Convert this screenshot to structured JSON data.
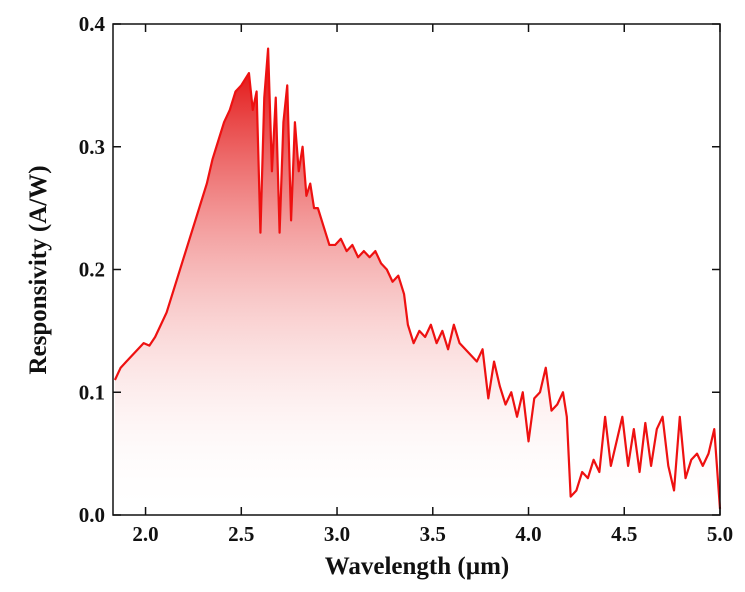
{
  "chart_data": {
    "type": "line",
    "x_label": "Wavelength (µm)",
    "y_label": "Responsivity (A/W)",
    "color": "#ee1111",
    "fill_under": true,
    "xlim": [
      1.83,
      5.0
    ],
    "ylim": [
      0,
      0.4
    ],
    "xticks": [
      {
        "value": 2,
        "label": "2.0"
      },
      2.5,
      {
        "value": 3,
        "label": "3.0"
      },
      3.5,
      {
        "value": 4,
        "label": "4.0"
      },
      4.5,
      {
        "value": 5,
        "label": "5.0"
      }
    ],
    "yticks": [
      {
        "value": 0,
        "label": "0.0"
      },
      0.1,
      0.2,
      0.3,
      0.4
    ],
    "x": [
      1.84,
      1.87,
      1.9,
      1.93,
      1.96,
      1.99,
      2.02,
      2.05,
      2.08,
      2.11,
      2.14,
      2.17,
      2.2,
      2.23,
      2.26,
      2.29,
      2.32,
      2.35,
      2.38,
      2.41,
      2.44,
      2.47,
      2.5,
      2.52,
      2.54,
      2.56,
      2.58,
      2.6,
      2.62,
      2.64,
      2.66,
      2.68,
      2.7,
      2.72,
      2.74,
      2.76,
      2.78,
      2.8,
      2.82,
      2.84,
      2.86,
      2.88,
      2.9,
      2.93,
      2.96,
      2.99,
      3.02,
      3.05,
      3.08,
      3.11,
      3.14,
      3.17,
      3.2,
      3.23,
      3.26,
      3.29,
      3.32,
      3.35,
      3.37,
      3.4,
      3.43,
      3.46,
      3.49,
      3.52,
      3.55,
      3.58,
      3.61,
      3.64,
      3.67,
      3.7,
      3.73,
      3.76,
      3.79,
      3.82,
      3.85,
      3.88,
      3.91,
      3.94,
      3.97,
      4.0,
      4.03,
      4.06,
      4.09,
      4.12,
      4.15,
      4.18,
      4.2,
      4.22,
      4.25,
      4.28,
      4.31,
      4.34,
      4.37,
      4.4,
      4.43,
      4.46,
      4.49,
      4.52,
      4.55,
      4.58,
      4.61,
      4.64,
      4.67,
      4.7,
      4.73,
      4.76,
      4.79,
      4.82,
      4.85,
      4.88,
      4.91,
      4.94,
      4.97,
      5.0
    ],
    "values": [
      0.11,
      0.12,
      0.125,
      0.13,
      0.135,
      0.14,
      0.138,
      0.145,
      0.155,
      0.165,
      0.18,
      0.195,
      0.21,
      0.225,
      0.24,
      0.255,
      0.27,
      0.29,
      0.305,
      0.32,
      0.33,
      0.345,
      0.35,
      0.355,
      0.36,
      0.33,
      0.345,
      0.23,
      0.34,
      0.38,
      0.28,
      0.34,
      0.23,
      0.32,
      0.35,
      0.24,
      0.32,
      0.28,
      0.3,
      0.26,
      0.27,
      0.25,
      0.25,
      0.235,
      0.22,
      0.22,
      0.225,
      0.215,
      0.22,
      0.21,
      0.215,
      0.21,
      0.215,
      0.205,
      0.2,
      0.19,
      0.195,
      0.18,
      0.155,
      0.14,
      0.15,
      0.145,
      0.155,
      0.14,
      0.15,
      0.135,
      0.155,
      0.14,
      0.135,
      0.13,
      0.125,
      0.135,
      0.095,
      0.125,
      0.105,
      0.09,
      0.1,
      0.08,
      0.1,
      0.06,
      0.095,
      0.1,
      0.12,
      0.085,
      0.09,
      0.1,
      0.08,
      0.015,
      0.02,
      0.035,
      0.03,
      0.045,
      0.035,
      0.08,
      0.04,
      0.06,
      0.08,
      0.04,
      0.07,
      0.035,
      0.075,
      0.04,
      0.07,
      0.08,
      0.04,
      0.02,
      0.08,
      0.03,
      0.045,
      0.05,
      0.04,
      0.05,
      0.07,
      0.005
    ]
  }
}
